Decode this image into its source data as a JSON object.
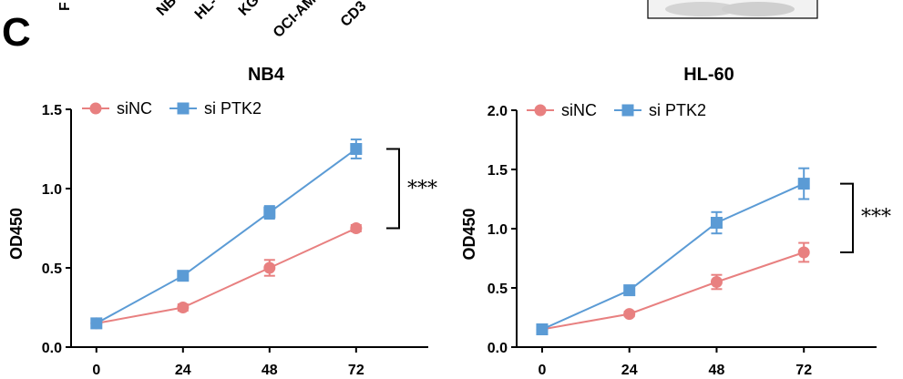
{
  "panel_label": "C",
  "top_partial_labels": [
    "F",
    "NB",
    "HL-",
    "KG",
    "OCI-AM",
    "CD3"
  ],
  "chart_data": [
    {
      "type": "line",
      "title": "NB4",
      "xlabel": "",
      "ylabel": "OD450",
      "x": [
        0,
        24,
        48,
        72
      ],
      "xticks": [
        "0",
        "24",
        "48",
        "72"
      ],
      "xlim": [
        -5,
        92
      ],
      "ylim": [
        0,
        1.5
      ],
      "yticks": [
        "0.0",
        "0.5",
        "1.0",
        "1.5"
      ],
      "legend": "top-left",
      "grid": false,
      "significance": "***",
      "series": [
        {
          "name": "siNC",
          "color": "#E88080",
          "marker": "circle",
          "values": [
            0.15,
            0.25,
            0.5,
            0.75
          ],
          "errors": [
            0.02,
            0.02,
            0.05,
            0.02
          ]
        },
        {
          "name": "si PTK2",
          "color": "#5B9BD5",
          "marker": "square",
          "values": [
            0.15,
            0.45,
            0.85,
            1.25
          ],
          "errors": [
            0.02,
            0.02,
            0.04,
            0.06
          ]
        }
      ]
    },
    {
      "type": "line",
      "title": "HL-60",
      "xlabel": "",
      "ylabel": "OD450",
      "x": [
        0,
        24,
        48,
        72
      ],
      "xticks": [
        "0",
        "24",
        "48",
        "72"
      ],
      "xlim": [
        -5,
        92
      ],
      "ylim": [
        0,
        2.0
      ],
      "yticks": [
        "0.0",
        "0.5",
        "1.0",
        "1.5",
        "2.0"
      ],
      "legend": "top-left",
      "grid": false,
      "significance": "***",
      "series": [
        {
          "name": "siNC",
          "color": "#E88080",
          "marker": "circle",
          "values": [
            0.15,
            0.28,
            0.55,
            0.8
          ],
          "errors": [
            0.02,
            0.02,
            0.06,
            0.08
          ]
        },
        {
          "name": "si PTK2",
          "color": "#5B9BD5",
          "marker": "square",
          "values": [
            0.15,
            0.48,
            1.05,
            1.38
          ],
          "errors": [
            0.02,
            0.02,
            0.09,
            0.13
          ]
        }
      ]
    }
  ]
}
